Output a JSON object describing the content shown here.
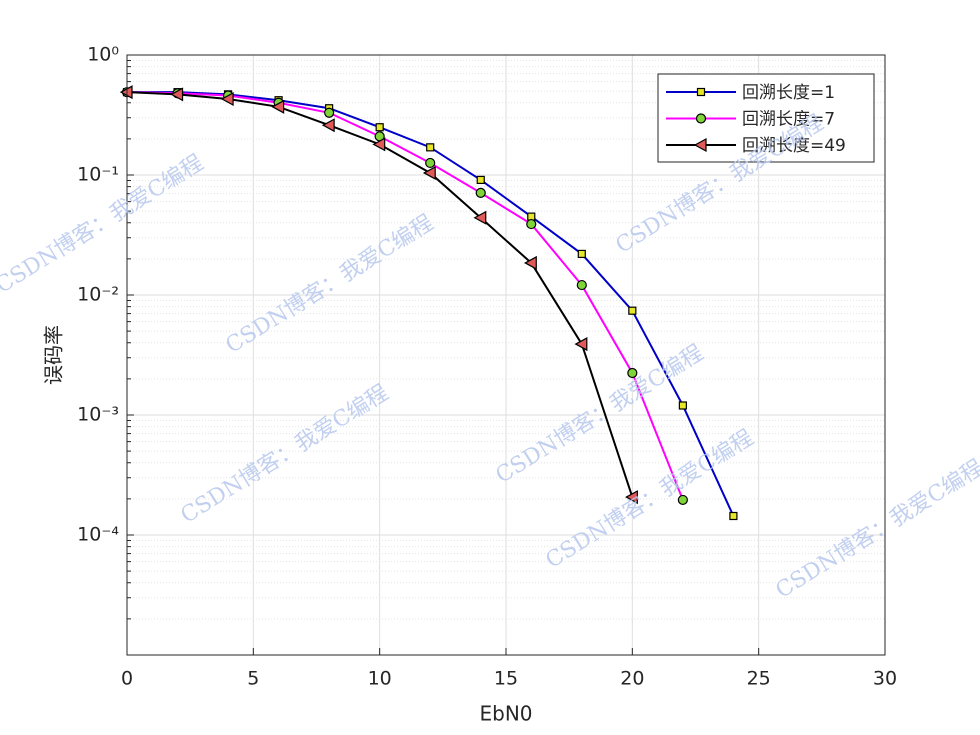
{
  "chart_data": {
    "type": "line",
    "log_y": true,
    "grid": true,
    "minor_grid": true,
    "legend": "upper-right",
    "xlabel": "EbN0",
    "ylabel": "误码率",
    "watermark": "CSDN博客：我爱C编程",
    "xlim": [
      0,
      30
    ],
    "xticks": [
      0,
      5,
      10,
      15,
      20,
      25,
      30
    ],
    "ylim": [
      1e-05,
      1
    ],
    "yticks": [
      {
        "value": 1,
        "label": "10⁰"
      },
      {
        "value": 0.1,
        "label": "10⁻¹"
      },
      {
        "value": 0.01,
        "label": "10⁻²"
      },
      {
        "value": 0.001,
        "label": "10⁻³"
      },
      {
        "value": 0.0001,
        "label": "10⁻⁴"
      }
    ],
    "series": [
      {
        "name": "回溯长度=1",
        "color": "#0000c8",
        "marker": "square",
        "marker_color": "#e6e62a",
        "x": [
          0,
          2,
          4,
          6,
          8,
          10,
          12,
          14,
          16,
          18,
          20,
          22,
          24
        ],
        "values": [
          0.49,
          0.49,
          0.47,
          0.42,
          0.36,
          0.25,
          0.17,
          0.091,
          0.045,
          0.022,
          0.0074,
          0.0012,
          0.000144
        ]
      },
      {
        "name": "回溯长度=7",
        "color": "#ff00ff",
        "marker": "circle",
        "marker_color": "#7fd43a",
        "x": [
          0,
          2,
          4,
          6,
          8,
          10,
          12,
          14,
          16,
          18,
          20,
          22
        ],
        "values": [
          0.49,
          0.48,
          0.46,
          0.4,
          0.33,
          0.21,
          0.126,
          0.071,
          0.039,
          0.0121,
          0.00224,
          0.000196
        ]
      },
      {
        "name": "回溯长度=49",
        "color": "#000000",
        "marker": "triangle-left",
        "marker_color": "#e05a5a",
        "x": [
          0,
          2,
          4,
          6,
          8,
          10,
          12,
          14,
          16,
          18,
          20
        ],
        "values": [
          0.49,
          0.47,
          0.43,
          0.37,
          0.26,
          0.18,
          0.104,
          0.044,
          0.0185,
          0.0039,
          0.000207
        ]
      }
    ]
  }
}
